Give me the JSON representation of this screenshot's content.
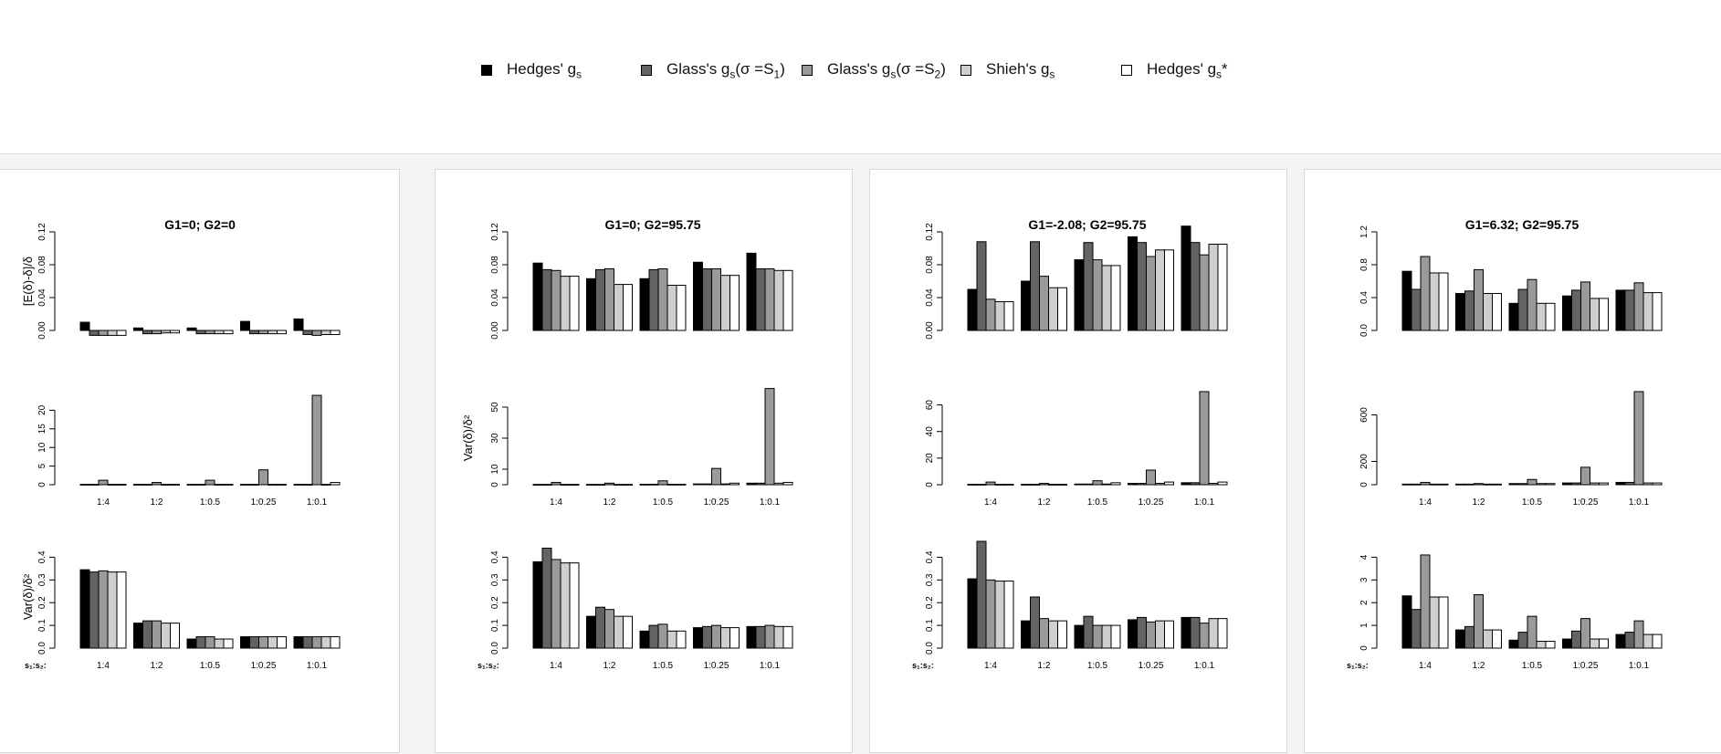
{
  "legend": [
    {
      "label_main": "Hedges' g",
      "label_sub": "s",
      "label_tail": "",
      "color": "#000000"
    },
    {
      "label_main": "Glass's g",
      "label_sub": "s",
      "label_tail": "(σ =S",
      "label_sub2": "1",
      "label_end": ")",
      "color": "#636363"
    },
    {
      "label_main": "Glass's g",
      "label_sub": "s",
      "label_tail": "(σ =S",
      "label_sub2": "2",
      "label_end": ")",
      "color": "#9a9a9a"
    },
    {
      "label_main": "Shieh's g",
      "label_sub": "s",
      "label_tail": "",
      "color": "#cfcfcf"
    },
    {
      "label_main": "Hedges' g",
      "label_sub": "s",
      "label_tail": "*",
      "color": "#ffffff"
    }
  ],
  "axis_labels": {
    "bias": "[E(δ)-δ]/δ",
    "var": "Var(δ)/δ²",
    "x_prefix": "s₁:s₂:"
  },
  "categories": [
    "1:4",
    "1:2",
    "1:0.5",
    "1:0.25",
    "1:0.1"
  ],
  "chart_data": [
    {
      "type": "bar",
      "title": "G1=0; G2=0",
      "ylabel_row1": "[E(δ)-δ]/δ",
      "ylabel_row2": "",
      "ylabel_row3": "Var(δ)/δ²",
      "rows": [
        {
          "ylim": [
            0,
            0.12
          ],
          "ticks": [
            "0.00",
            "0.04",
            "0.08",
            "0.12"
          ],
          "tick_values": [
            0,
            0.04,
            0.08,
            0.12
          ],
          "values": [
            [
              0.01,
              -0.006,
              -0.006,
              -0.006,
              -0.006
            ],
            [
              0.003,
              -0.004,
              -0.004,
              -0.003,
              -0.003
            ],
            [
              0.003,
              -0.004,
              -0.004,
              -0.004,
              -0.004
            ],
            [
              0.011,
              -0.004,
              -0.004,
              -0.004,
              -0.004
            ],
            [
              0.014,
              -0.005,
              -0.006,
              -0.005,
              -0.005
            ]
          ]
        },
        {
          "ylim": [
            0,
            25
          ],
          "ticks": [
            "0",
            "5",
            "10",
            "15",
            "20"
          ],
          "tick_values": [
            0,
            5,
            10,
            15,
            20
          ],
          "values": [
            [
              0.1,
              0.1,
              1.2,
              0.1,
              0.1
            ],
            [
              0.1,
              0.1,
              0.6,
              0.1,
              0.1
            ],
            [
              0.1,
              0.1,
              1.2,
              0.1,
              0.1
            ],
            [
              0.1,
              0.1,
              4.0,
              0.1,
              0.1
            ],
            [
              0.1,
              0.1,
              24.0,
              0.1,
              0.6
            ]
          ]
        },
        {
          "ylim": [
            0,
            0.45
          ],
          "ticks": [
            "0.0",
            "0.1",
            "0.2",
            "0.3",
            "0.4"
          ],
          "tick_values": [
            0,
            0.1,
            0.2,
            0.3,
            0.4
          ],
          "values": [
            [
              0.345,
              0.335,
              0.34,
              0.335,
              0.335
            ],
            [
              0.11,
              0.12,
              0.12,
              0.11,
              0.11
            ],
            [
              0.04,
              0.05,
              0.05,
              0.04,
              0.04
            ],
            [
              0.05,
              0.05,
              0.05,
              0.05,
              0.05
            ],
            [
              0.05,
              0.05,
              0.05,
              0.05,
              0.05
            ]
          ]
        }
      ]
    },
    {
      "type": "bar",
      "title": "G1=0; G2=95.75",
      "ylabel_row1": "",
      "ylabel_row2": "Var(δ)/δ²",
      "ylabel_row3": "",
      "rows": [
        {
          "ylim": [
            0,
            0.12
          ],
          "ticks": [
            "0.00",
            "0.04",
            "0.08",
            "0.12"
          ],
          "tick_values": [
            0,
            0.04,
            0.08,
            0.12
          ],
          "values": [
            [
              0.082,
              0.074,
              0.073,
              0.066,
              0.066
            ],
            [
              0.063,
              0.074,
              0.075,
              0.056,
              0.056
            ],
            [
              0.063,
              0.074,
              0.075,
              0.055,
              0.055
            ],
            [
              0.083,
              0.075,
              0.075,
              0.067,
              0.067
            ],
            [
              0.094,
              0.075,
              0.075,
              0.073,
              0.073
            ]
          ]
        },
        {
          "ylim": [
            0,
            60
          ],
          "ticks": [
            "0",
            "10",
            "30",
            "50"
          ],
          "tick_values": [
            0,
            10,
            30,
            50
          ],
          "values": [
            [
              0.2,
              0.2,
              1.5,
              0.2,
              0.2
            ],
            [
              0.2,
              0.2,
              1.0,
              0.2,
              0.2
            ],
            [
              0.3,
              0.3,
              2.5,
              0.3,
              0.3
            ],
            [
              0.5,
              0.5,
              10.5,
              0.5,
              1.0
            ],
            [
              1.0,
              1.0,
              62.0,
              1.0,
              1.5
            ]
          ]
        },
        {
          "ylim": [
            0,
            0.45
          ],
          "ticks": [
            "0.0",
            "0.1",
            "0.2",
            "0.3",
            "0.4"
          ],
          "tick_values": [
            0,
            0.1,
            0.2,
            0.3,
            0.4
          ],
          "values": [
            [
              0.38,
              0.44,
              0.39,
              0.375,
              0.375
            ],
            [
              0.14,
              0.18,
              0.17,
              0.14,
              0.14
            ],
            [
              0.075,
              0.1,
              0.105,
              0.075,
              0.075
            ],
            [
              0.09,
              0.095,
              0.1,
              0.09,
              0.09
            ],
            [
              0.095,
              0.095,
              0.1,
              0.095,
              0.095
            ]
          ]
        }
      ]
    },
    {
      "type": "bar",
      "title": "G1=-2.08; G2=95.75",
      "ylabel_row1": "",
      "ylabel_row2": "",
      "ylabel_row3": "",
      "rows": [
        {
          "ylim": [
            0,
            0.12
          ],
          "ticks": [
            "0.00",
            "0.04",
            "0.08",
            "0.12"
          ],
          "tick_values": [
            0,
            0.04,
            0.08,
            0.12
          ],
          "values": [
            [
              0.05,
              0.108,
              0.038,
              0.035,
              0.035
            ],
            [
              0.06,
              0.108,
              0.066,
              0.052,
              0.052
            ],
            [
              0.086,
              0.107,
              0.086,
              0.079,
              0.079
            ],
            [
              0.114,
              0.107,
              0.09,
              0.098,
              0.098
            ],
            [
              0.127,
              0.107,
              0.092,
              0.105,
              0.105
            ]
          ]
        },
        {
          "ylim": [
            0,
            70
          ],
          "ticks": [
            "0",
            "20",
            "40",
            "60"
          ],
          "tick_values": [
            0,
            20,
            40,
            60
          ],
          "values": [
            [
              0.3,
              0.3,
              2.0,
              0.3,
              0.3
            ],
            [
              0.3,
              0.3,
              1.0,
              0.3,
              0.3
            ],
            [
              0.5,
              0.5,
              3.0,
              0.5,
              1.5
            ],
            [
              1.0,
              1.0,
              11.0,
              1.0,
              2.0
            ],
            [
              1.5,
              1.5,
              70.0,
              1.0,
              2.0
            ]
          ]
        },
        {
          "ylim": [
            0,
            0.45
          ],
          "ticks": [
            "0.0",
            "0.1",
            "0.2",
            "0.3",
            "0.4"
          ],
          "tick_values": [
            0,
            0.1,
            0.2,
            0.3,
            0.4
          ],
          "values": [
            [
              0.305,
              0.47,
              0.3,
              0.295,
              0.295
            ],
            [
              0.12,
              0.225,
              0.13,
              0.12,
              0.12
            ],
            [
              0.1,
              0.14,
              0.1,
              0.1,
              0.1
            ],
            [
              0.125,
              0.135,
              0.115,
              0.12,
              0.12
            ],
            [
              0.135,
              0.135,
              0.11,
              0.13,
              0.13
            ]
          ]
        }
      ]
    },
    {
      "type": "bar",
      "title": "G1=6.32; G2=95.75",
      "ylabel_row1": "",
      "ylabel_row2": "",
      "ylabel_row3": "",
      "rows": [
        {
          "ylim": [
            0,
            1.2
          ],
          "ticks": [
            "0.0",
            "0.4",
            "0.8",
            "1.2"
          ],
          "tick_values": [
            0,
            0.4,
            0.8,
            1.2
          ],
          "values": [
            [
              0.72,
              0.5,
              0.9,
              0.7,
              0.7
            ],
            [
              0.45,
              0.48,
              0.74,
              0.45,
              0.45
            ],
            [
              0.33,
              0.5,
              0.62,
              0.33,
              0.33
            ],
            [
              0.42,
              0.49,
              0.59,
              0.39,
              0.39
            ],
            [
              0.49,
              0.49,
              0.58,
              0.46,
              0.46
            ]
          ]
        },
        {
          "ylim": [
            0,
            800
          ],
          "ticks": [
            "0",
            "200",
            "600"
          ],
          "tick_values": [
            0,
            200,
            600
          ],
          "values": [
            [
              5,
              5,
              20,
              5,
              5
            ],
            [
              5,
              5,
              10,
              5,
              5
            ],
            [
              10,
              10,
              45,
              10,
              10
            ],
            [
              15,
              15,
              150,
              15,
              15
            ],
            [
              20,
              20,
              800,
              15,
              15
            ]
          ]
        },
        {
          "ylim": [
            0,
            4.5
          ],
          "ticks": [
            "0",
            "1",
            "2",
            "3",
            "4"
          ],
          "tick_values": [
            0,
            1,
            2,
            3,
            4
          ],
          "values": [
            [
              2.3,
              1.7,
              4.1,
              2.25,
              2.25
            ],
            [
              0.8,
              0.95,
              2.35,
              0.8,
              0.8
            ],
            [
              0.35,
              0.7,
              1.4,
              0.3,
              0.3
            ],
            [
              0.4,
              0.75,
              1.3,
              0.4,
              0.4
            ],
            [
              0.6,
              0.7,
              1.2,
              0.6,
              0.6
            ]
          ]
        }
      ]
    }
  ]
}
